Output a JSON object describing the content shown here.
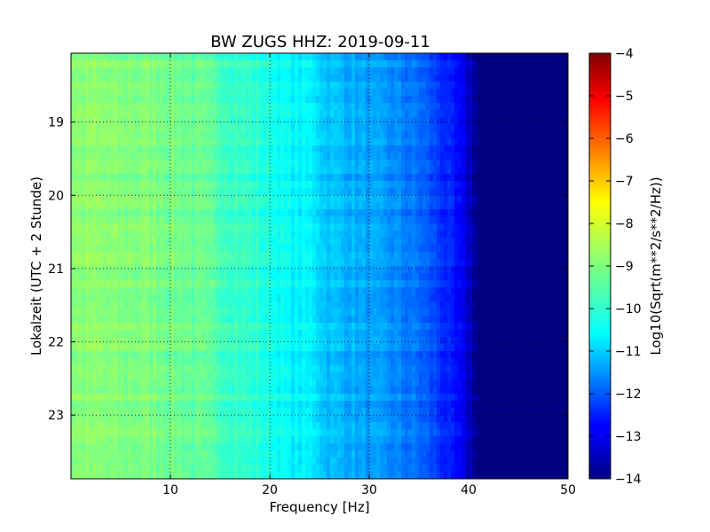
{
  "chart_data": {
    "type": "heatmap",
    "title": "BW ZUGS HHZ: 2019-09-11",
    "xlabel": "Frequency [Hz]",
    "ylabel": "Lokalzeit (UTC + 2 Stunde)",
    "xlim": [
      0,
      50
    ],
    "ylim": [
      18.06,
      23.87
    ],
    "y_inverted": true,
    "x_ticks": [
      10,
      20,
      30,
      40,
      50
    ],
    "y_ticks": [
      19,
      20,
      21,
      22,
      23
    ],
    "grid": true,
    "colormap": "jet",
    "colorbar": {
      "label": "Log10(Sqrt(m**2/s**2/Hz))",
      "range": [
        -14,
        -4
      ],
      "ticks": [
        -4,
        -5,
        -6,
        -7,
        -8,
        -9,
        -10,
        -11,
        -12,
        -13,
        -14
      ]
    },
    "frequency_profile": {
      "x": [
        0,
        2,
        5,
        8,
        10,
        12,
        15,
        18,
        20,
        22,
        24.5,
        25.5,
        28,
        30,
        32,
        35,
        37,
        39,
        40,
        41,
        45,
        50
      ],
      "values": [
        -8.9,
        -8.9,
        -9.0,
        -9.0,
        -9.1,
        -9.2,
        -9.5,
        -9.8,
        -10.0,
        -10.3,
        -10.4,
        -10.8,
        -11.0,
        -11.2,
        -11.35,
        -11.7,
        -12.2,
        -12.8,
        -13.2,
        -14.0,
        -14.0,
        -14.0
      ]
    }
  }
}
